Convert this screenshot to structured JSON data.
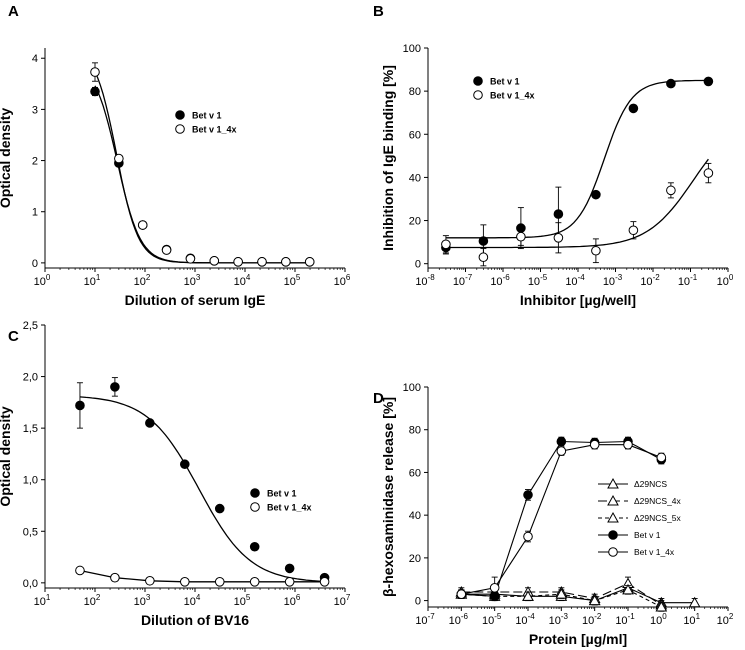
{
  "chart_data": [
    {
      "panel": "A",
      "type": "scatter",
      "xlabel": "Dilution of serum IgE",
      "ylabel": "Optical density",
      "xscale": "log",
      "xlim": [
        1,
        1000000
      ],
      "ylim": [
        -0.1,
        4.2
      ],
      "yticks": [
        "0",
        "1",
        "2",
        "3",
        "4"
      ],
      "legend_position": "center",
      "series": [
        {
          "name": "Bet v 1",
          "marker": "filled-circle",
          "x": [
            10,
            30,
            90,
            270,
            810,
            2430,
            7290,
            21870,
            65610,
            196830
          ],
          "y": [
            3.35,
            1.95,
            0.74,
            0.26,
            0.09,
            0.04,
            0.02,
            0.02,
            0.02,
            0.02
          ],
          "err": [
            0.08,
            0.05,
            0.04,
            0.03,
            0.02,
            0.02,
            0.01,
            0.01,
            0.01,
            0.01
          ]
        },
        {
          "name": "Bet v 1_4x",
          "marker": "open-circle",
          "x": [
            10,
            30,
            90,
            270,
            810,
            2430,
            7290,
            21870,
            65610,
            196830
          ],
          "y": [
            3.73,
            2.04,
            0.74,
            0.25,
            0.08,
            0.04,
            0.02,
            0.02,
            0.02,
            0.02
          ],
          "err": [
            0.18,
            0.06,
            0.04,
            0.03,
            0.03,
            0.03,
            0.01,
            0.01,
            0.01,
            0.01
          ]
        }
      ]
    },
    {
      "panel": "B",
      "type": "scatter",
      "xlabel": "Inhibitor [µg/well]",
      "ylabel": "Inhibition of IgE binding [%]",
      "xscale": "log",
      "xlim": [
        1e-08,
        1
      ],
      "ylim": [
        -2,
        100
      ],
      "yticks": [
        "0",
        "20",
        "40",
        "60",
        "80",
        "100"
      ],
      "legend_position": "top-left",
      "series": [
        {
          "name": "Bet v 1",
          "marker": "filled-circle",
          "x": [
            3e-08,
            3e-07,
            3e-06,
            3e-05,
            0.0003,
            0.003,
            0.03,
            0.3
          ],
          "y": [
            7.5,
            10.5,
            16.5,
            23,
            32,
            72,
            83.5,
            84.5
          ],
          "err": [
            3,
            7.5,
            9.5,
            12.5,
            1.5,
            1.5,
            1,
            1
          ]
        },
        {
          "name": "Bet v 1_4x",
          "marker": "open-circle",
          "x": [
            3e-08,
            3e-07,
            3e-06,
            3e-05,
            0.0003,
            0.003,
            0.03,
            0.3
          ],
          "y": [
            9,
            3,
            12.5,
            12,
            6,
            15.5,
            34,
            42
          ],
          "err": [
            4,
            4,
            4,
            7,
            5.5,
            4,
            3.5,
            4.5
          ]
        }
      ]
    },
    {
      "panel": "C",
      "type": "scatter",
      "xlabel": "Dilution of BV16",
      "ylabel": "Optical density",
      "xscale": "log",
      "xlim": [
        10,
        10000000
      ],
      "ylim": [
        -0.05,
        2.5
      ],
      "yticks": [
        "0,0",
        "0,5",
        "1,0",
        "1,5",
        "2,0",
        "2,5"
      ],
      "legend_position": "right",
      "series": [
        {
          "name": "Bet v 1",
          "marker": "filled-circle",
          "x": [
            50,
            250,
            1250,
            6250,
            31250,
            156250,
            781250,
            3906250
          ],
          "y": [
            1.72,
            1.9,
            1.55,
            1.15,
            0.72,
            0.35,
            0.14,
            0.05
          ],
          "err": [
            0.22,
            0.09,
            0.02,
            0.02,
            0.02,
            0.02,
            0.01,
            0.01
          ]
        },
        {
          "name": "Bet v 1_4x",
          "marker": "open-circle",
          "x": [
            50,
            250,
            1250,
            6250,
            31250,
            156250,
            781250,
            3906250
          ],
          "y": [
            0.12,
            0.05,
            0.02,
            0.01,
            0.01,
            0.01,
            0.01,
            0.01
          ],
          "err": [
            0.01,
            0.01,
            0.01,
            0.01,
            0.01,
            0.01,
            0.01,
            0.01
          ]
        }
      ]
    },
    {
      "panel": "D",
      "type": "line",
      "xlabel": "Protein [µg/ml]",
      "ylabel": "β-hexosaminidase release [%]",
      "xscale": "log",
      "xlim": [
        1e-07,
        100
      ],
      "ylim": [
        -3,
        100
      ],
      "yticks": [
        "0",
        "20",
        "40",
        "60",
        "80",
        "100"
      ],
      "legend_position": "bottom-right",
      "series": [
        {
          "name": "Δ29NCS",
          "marker": "open-triangle",
          "line": "solid",
          "x": [
            1e-06,
            1e-05,
            0.0001,
            0.001,
            0.01,
            0.1,
            1,
            10
          ],
          "y": [
            3,
            3,
            2,
            2,
            0,
            6,
            -1,
            -1
          ],
          "err": [
            2,
            2,
            2,
            2,
            2,
            2,
            2,
            2
          ]
        },
        {
          "name": "Δ29NCS_4x",
          "marker": "open-triangle",
          "line": "longdash",
          "x": [
            1e-06,
            1e-05,
            0.0001,
            0.001,
            0.01,
            0.1,
            1
          ],
          "y": [
            4,
            4,
            4,
            4,
            1,
            8,
            -2
          ],
          "err": [
            2,
            2,
            2,
            2,
            2,
            3,
            2
          ]
        },
        {
          "name": "Δ29NCS_5x",
          "marker": "open-triangle",
          "line": "shortdash",
          "x": [
            1e-06,
            1e-05,
            0.0001,
            0.001,
            0.01,
            0.1,
            1
          ],
          "y": [
            3,
            2,
            2,
            3,
            0,
            5,
            -3
          ],
          "err": [
            2,
            2,
            2,
            2,
            2,
            2,
            2
          ]
        },
        {
          "name": "Bet v 1",
          "marker": "filled-circle",
          "line": "solid",
          "x": [
            1e-06,
            1e-05,
            0.0001,
            0.001,
            0.01,
            0.1,
            1
          ],
          "y": [
            3,
            2,
            49.5,
            74.5,
            74,
            74.5,
            66
          ],
          "err": [
            2,
            2,
            2.5,
            2,
            2,
            2,
            2
          ]
        },
        {
          "name": "Bet v 1_4x",
          "marker": "open-circle",
          "line": "solid",
          "x": [
            1e-06,
            1e-05,
            0.0001,
            0.001,
            0.01,
            0.1,
            1
          ],
          "y": [
            3,
            6,
            30,
            70,
            73,
            73,
            67
          ],
          "err": [
            2,
            5,
            2.5,
            2,
            2,
            2,
            2
          ]
        }
      ]
    }
  ]
}
